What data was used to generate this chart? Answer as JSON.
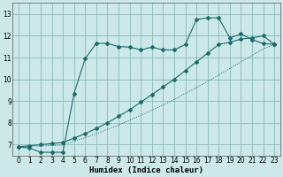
{
  "xlabel": "Humidex (Indice chaleur)",
  "bg_color": "#cce8e8",
  "grid_color": "#88bbbb",
  "line_color": "#1a6b6b",
  "xlim": [
    -0.5,
    23.5
  ],
  "ylim": [
    6.5,
    13.5
  ],
  "xticks": [
    0,
    1,
    2,
    3,
    4,
    5,
    6,
    7,
    8,
    9,
    10,
    11,
    12,
    13,
    14,
    15,
    16,
    17,
    18,
    19,
    20,
    21,
    22,
    23
  ],
  "yticks": [
    7,
    8,
    9,
    10,
    11,
    12,
    13
  ],
  "series1_x": [
    0,
    1,
    2,
    3,
    4,
    5,
    6,
    7,
    8,
    9,
    10,
    11,
    12,
    13,
    14,
    15,
    16,
    17,
    18,
    19,
    20,
    21,
    22,
    23
  ],
  "series1_y": [
    6.9,
    6.85,
    6.65,
    6.65,
    6.65,
    9.35,
    10.95,
    11.65,
    11.65,
    11.5,
    11.48,
    11.35,
    11.48,
    11.35,
    11.35,
    11.6,
    12.75,
    12.82,
    12.82,
    11.9,
    12.08,
    11.82,
    11.65,
    11.6
  ],
  "series2_x": [
    0,
    1,
    2,
    3,
    4,
    5,
    6,
    7,
    8,
    9,
    10,
    11,
    12,
    13,
    14,
    15,
    16,
    17,
    18,
    19,
    20,
    21,
    22,
    23
  ],
  "series2_y": [
    6.9,
    6.95,
    7.0,
    7.05,
    7.1,
    7.3,
    7.5,
    7.75,
    8.0,
    8.3,
    8.6,
    8.95,
    9.3,
    9.65,
    10.0,
    10.4,
    10.8,
    11.2,
    11.6,
    11.7,
    11.85,
    11.9,
    12.0,
    11.6
  ],
  "series3_x": [
    0,
    1,
    2,
    3,
    4,
    5,
    6,
    7,
    8,
    9,
    10,
    11,
    12,
    13,
    14,
    15,
    16,
    17,
    18,
    19,
    20,
    21,
    22,
    23
  ],
  "series3_y": [
    6.9,
    6.92,
    6.94,
    6.96,
    6.98,
    7.15,
    7.32,
    7.5,
    7.7,
    7.9,
    8.12,
    8.35,
    8.58,
    8.82,
    9.07,
    9.35,
    9.62,
    9.9,
    10.2,
    10.5,
    10.8,
    11.1,
    11.4,
    11.6
  ]
}
